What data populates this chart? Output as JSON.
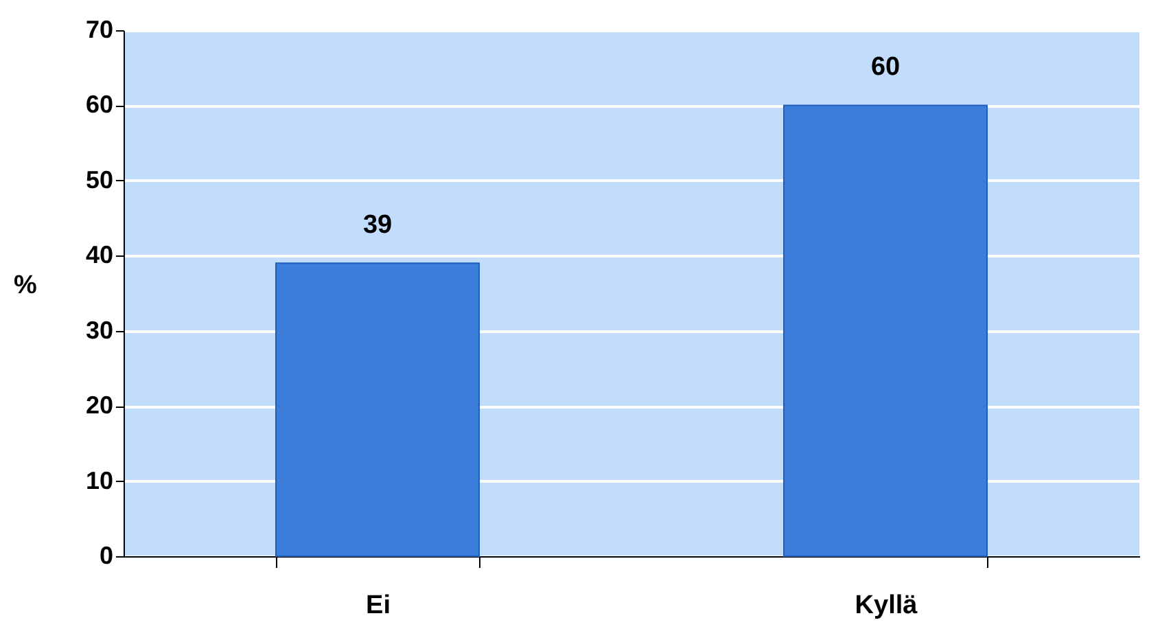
{
  "chart_data": {
    "type": "bar",
    "ylabel": "%",
    "categories": [
      "Ei",
      "Kyllä"
    ],
    "values": [
      39,
      60
    ],
    "color": "#3b7dd8",
    "ylim": [
      0,
      70
    ],
    "yticks": [
      0,
      10,
      20,
      30,
      40,
      50,
      60,
      70
    ],
    "grid": "y",
    "data_labels": true
  }
}
